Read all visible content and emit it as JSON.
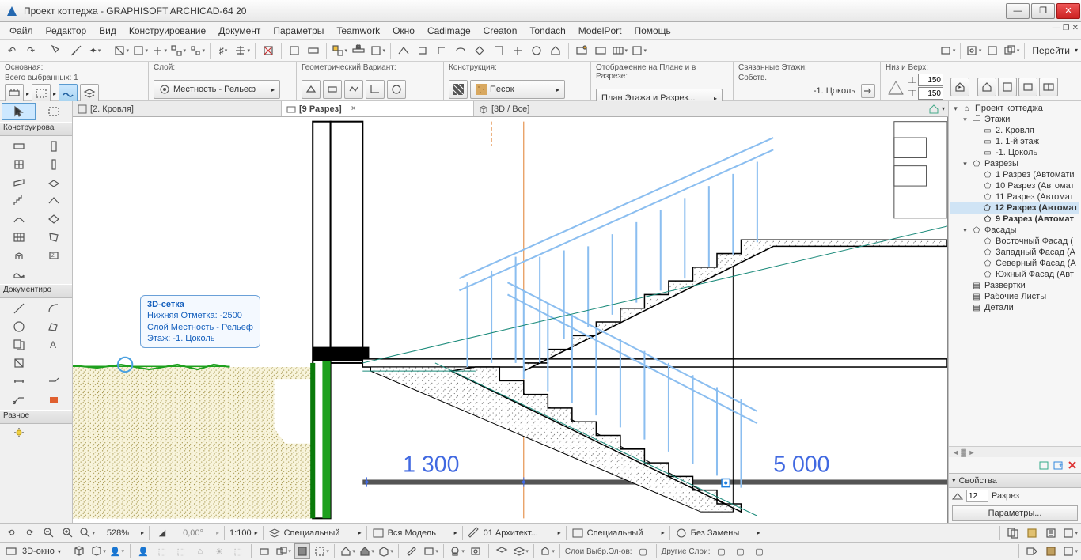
{
  "window": {
    "title": "Проект коттеджа - GRAPHISOFT ARCHICAD-64 20"
  },
  "menu": [
    "Файл",
    "Редактор",
    "Вид",
    "Конструирование",
    "Документ",
    "Параметры",
    "Teamwork",
    "Окно",
    "Cadimage",
    "Creaton",
    "Tondach",
    "ModelPort",
    "Помощь"
  ],
  "goto_label": "Перейти",
  "info": {
    "main_label": "Основная:",
    "selected_label": "Всего выбранных: 1",
    "layer_label": "Слой:",
    "layer_value": "Местность - Рельеф",
    "geom_label": "Геометрический Вариант:",
    "constr_label": "Конструкция:",
    "constr_value": "Песок",
    "plan_label": "Отображение на Плане и в Разрезе:",
    "plan_value": "План Этажа и Разрез...",
    "stories_label": "Связанные Этажи:",
    "owner_label": "Собств.:",
    "story_value": "-1. Цоколь",
    "topbot_label": "Низ и Верх:",
    "h1": "150",
    "h2": "150"
  },
  "tabs": [
    {
      "icon": "plan",
      "label": "[2. Кровля]",
      "active": false
    },
    {
      "icon": "section",
      "label": "[9 Разрез]",
      "active": true,
      "close": true
    },
    {
      "icon": "3d",
      "label": "[3D / Все]",
      "active": false
    }
  ],
  "left_panel": {
    "arrow_hdr": "",
    "constr_hdr": "Конструирова",
    "doc_hdr": "Документиро",
    "misc_hdr": "Разное"
  },
  "tooltip": {
    "title": "3D-сетка",
    "l1": "Нижняя Отметка: -2500",
    "l2": "Слой Местность - Рельеф",
    "l3": "Этаж: -1. Цоколь"
  },
  "dims": {
    "d1": "1 300",
    "d2": "5 000"
  },
  "tree": [
    {
      "lvl": 0,
      "caret": "▾",
      "icon": "home",
      "label": "Проект коттеджа"
    },
    {
      "lvl": 1,
      "caret": "▾",
      "icon": "folder",
      "label": "Этажи"
    },
    {
      "lvl": 2,
      "caret": "",
      "icon": "plan",
      "label": "2. Кровля"
    },
    {
      "lvl": 2,
      "caret": "",
      "icon": "plan",
      "label": "1. 1-й этаж"
    },
    {
      "lvl": 2,
      "caret": "",
      "icon": "plan",
      "label": "-1. Цоколь"
    },
    {
      "lvl": 1,
      "caret": "▾",
      "icon": "sect",
      "label": "Разрезы"
    },
    {
      "lvl": 2,
      "caret": "",
      "icon": "sect",
      "label": "1 Разрез (Автомати"
    },
    {
      "lvl": 2,
      "caret": "",
      "icon": "sect",
      "label": "10 Разрез (Автомат"
    },
    {
      "lvl": 2,
      "caret": "",
      "icon": "sect",
      "label": "11 Разрез (Автомат"
    },
    {
      "lvl": 2,
      "caret": "",
      "icon": "sect",
      "label": "12 Разрез (Автомат",
      "sel": true
    },
    {
      "lvl": 2,
      "caret": "",
      "icon": "sect",
      "label": "9 Разрез (Автомат",
      "bold": true
    },
    {
      "lvl": 1,
      "caret": "▾",
      "icon": "sect",
      "label": "Фасады"
    },
    {
      "lvl": 2,
      "caret": "",
      "icon": "sect",
      "label": "Восточный Фасад ("
    },
    {
      "lvl": 2,
      "caret": "",
      "icon": "sect",
      "label": "Западный Фасад (А"
    },
    {
      "lvl": 2,
      "caret": "",
      "icon": "sect",
      "label": "Северный Фасад (А"
    },
    {
      "lvl": 2,
      "caret": "",
      "icon": "sect",
      "label": "Южный Фасад (Авт"
    },
    {
      "lvl": 1,
      "caret": "",
      "icon": "page",
      "label": "Развертки"
    },
    {
      "lvl": 1,
      "caret": "",
      "icon": "page",
      "label": "Рабочие Листы"
    },
    {
      "lvl": 1,
      "caret": "",
      "icon": "page",
      "label": "Детали"
    }
  ],
  "props": {
    "hdr": "Свойства",
    "id": "12",
    "type": "Разрез",
    "btn": "Параметры..."
  },
  "status1": {
    "zoom": "528%",
    "angle": "0,00°",
    "scale": "1:100",
    "c1": "Специальный",
    "c2": "Вся Модель",
    "c3": "01 Архитект...",
    "c4": "Специальный",
    "c5": "Без Замены"
  },
  "status2": {
    "win": "3D-окно",
    "l1": "Слои Выбр.Эл-ов:",
    "l2": "Другие Слои:"
  },
  "colors": {
    "blue": "#4169e1",
    "lightblue": "#8bbef0",
    "green": "#1ea01e",
    "darkgreen": "#0a7a0a",
    "teal": "#1a8a7a",
    "orange": "#d88830",
    "brown": "#8b6b3a",
    "gray": "#888",
    "black": "#000"
  }
}
